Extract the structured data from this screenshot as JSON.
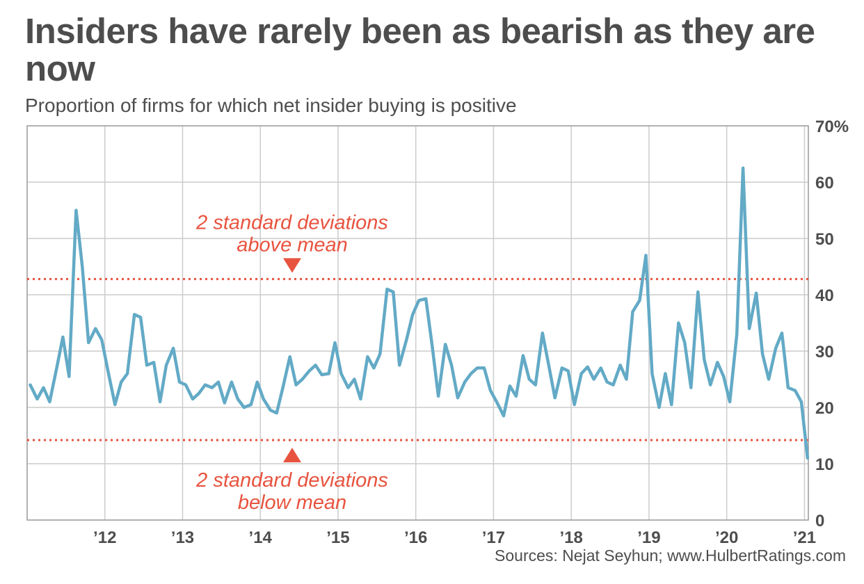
{
  "title": "Insiders have rarely been as bearish as they are now",
  "subtitle": "Proportion of firms for which net insider buying is positive",
  "source": "Sources: Nejat Seyhun; www.HulbertRatings.com",
  "colors": {
    "line": "#63aac6",
    "annotation": "#e8533f",
    "grid": "#cccccc",
    "frame": "#999999"
  },
  "chart_data": {
    "type": "line",
    "title": "Insiders have rarely been as bearish as they are now",
    "ylabel": "Proportion of firms for which net insider buying is positive (%)",
    "xlim": [
      2011.0,
      2021.05
    ],
    "ylim": [
      0,
      70
    ],
    "x_tick_values": [
      2012,
      2013,
      2014,
      2015,
      2016,
      2017,
      2018,
      2019,
      2020,
      2021
    ],
    "x_tick_labels": [
      "’12",
      "’13",
      "’14",
      "’15",
      "’16",
      "’17",
      "’18",
      "’19",
      "’20",
      "’21"
    ],
    "y_tick_values": [
      0,
      10,
      20,
      30,
      40,
      50,
      60,
      70
    ],
    "y_tick_labels": [
      "0",
      "10",
      "20",
      "30",
      "40",
      "50",
      "60",
      "70%"
    ],
    "grid": true,
    "series": [
      {
        "name": "Proportion of firms with positive net insider buying",
        "x": [
          2011.04,
          2011.13,
          2011.21,
          2011.29,
          2011.38,
          2011.46,
          2011.54,
          2011.63,
          2011.71,
          2011.79,
          2011.88,
          2011.96,
          2012.04,
          2012.13,
          2012.21,
          2012.29,
          2012.38,
          2012.46,
          2012.54,
          2012.63,
          2012.71,
          2012.79,
          2012.88,
          2012.96,
          2013.04,
          2013.13,
          2013.21,
          2013.29,
          2013.38,
          2013.46,
          2013.54,
          2013.63,
          2013.71,
          2013.79,
          2013.88,
          2013.96,
          2014.04,
          2014.13,
          2014.21,
          2014.29,
          2014.38,
          2014.46,
          2014.54,
          2014.63,
          2014.71,
          2014.79,
          2014.88,
          2014.96,
          2015.04,
          2015.13,
          2015.21,
          2015.29,
          2015.38,
          2015.46,
          2015.54,
          2015.63,
          2015.71,
          2015.79,
          2015.88,
          2015.96,
          2016.04,
          2016.13,
          2016.21,
          2016.29,
          2016.38,
          2016.46,
          2016.54,
          2016.63,
          2016.71,
          2016.79,
          2016.88,
          2016.96,
          2017.04,
          2017.13,
          2017.21,
          2017.29,
          2017.38,
          2017.46,
          2017.54,
          2017.63,
          2017.71,
          2017.79,
          2017.88,
          2017.96,
          2018.04,
          2018.13,
          2018.21,
          2018.29,
          2018.38,
          2018.46,
          2018.54,
          2018.63,
          2018.71,
          2018.79,
          2018.88,
          2018.96,
          2019.04,
          2019.13,
          2019.21,
          2019.29,
          2019.38,
          2019.46,
          2019.54,
          2019.63,
          2019.71,
          2019.79,
          2019.88,
          2019.96,
          2020.04,
          2020.13,
          2020.21,
          2020.29,
          2020.38,
          2020.46,
          2020.54,
          2020.63,
          2020.71,
          2020.79,
          2020.88,
          2020.96,
          2021.04
        ],
        "values": [
          24,
          21.5,
          23.5,
          21,
          27,
          32.5,
          25.5,
          55,
          45,
          31.5,
          34,
          32,
          26.5,
          20.5,
          24.5,
          26,
          36.5,
          36,
          27.5,
          28,
          21,
          27.5,
          30.5,
          24.5,
          24,
          21.5,
          22.5,
          24,
          23.5,
          24.5,
          20.8,
          24.5,
          21.5,
          20,
          20.5,
          24.5,
          21.5,
          19.5,
          19,
          23.5,
          29,
          24,
          25,
          26.5,
          27.5,
          25.8,
          26,
          31.5,
          26,
          23.5,
          25,
          21.5,
          29,
          27,
          29.5,
          41,
          40.5,
          27.5,
          32,
          36.5,
          39,
          39.3,
          31,
          22,
          31.2,
          27.5,
          21.7,
          24.5,
          26,
          27,
          27,
          23,
          21,
          18.5,
          23.8,
          22,
          29.2,
          25,
          24,
          33.2,
          27.5,
          21.7,
          27,
          26.5,
          20.5,
          26,
          27.2,
          25,
          27,
          24.5,
          24,
          27.5,
          25,
          37,
          39,
          47,
          26,
          20,
          26,
          20.5,
          35,
          31.5,
          23.5,
          40.5,
          28.5,
          24,
          28,
          25.5,
          21,
          33,
          62.5,
          34,
          40.3,
          29.5,
          25,
          30.5,
          33.2,
          23.5,
          23,
          21,
          11
        ]
      }
    ],
    "reference_lines": [
      {
        "name": "2 standard deviations above mean",
        "y": 42.8
      },
      {
        "name": "2 standard deviations below mean",
        "y": 14.2
      }
    ],
    "annotations": {
      "upper": [
        "2 standard deviations",
        "above mean"
      ],
      "lower": [
        "2 standard deviations",
        "below mean"
      ]
    }
  }
}
